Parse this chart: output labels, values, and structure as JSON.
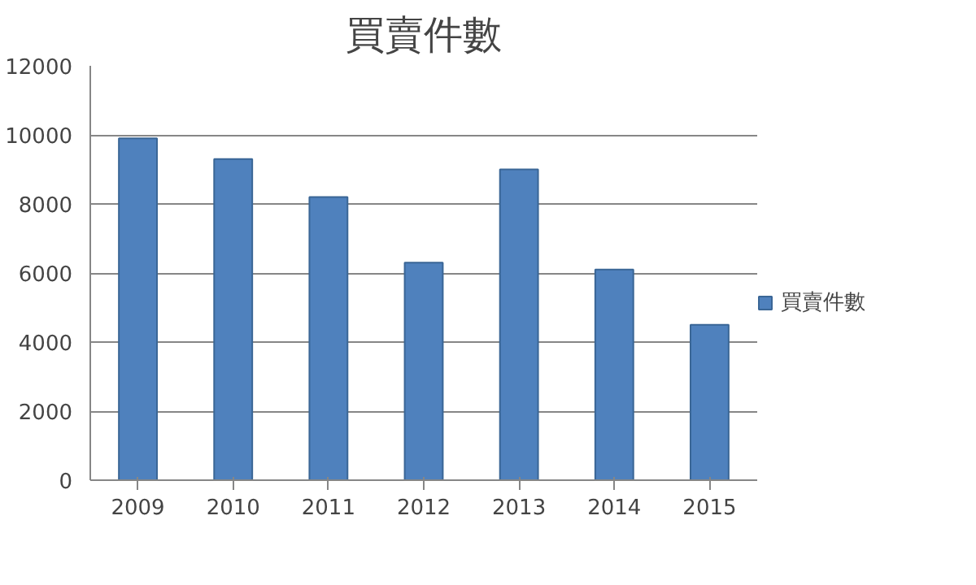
{
  "chart_data": {
    "type": "bar",
    "title": "買賣件數",
    "categories": [
      "2009",
      "2010",
      "2011",
      "2012",
      "2013",
      "2014",
      "2015"
    ],
    "series": [
      {
        "name": "買賣件數",
        "color": "#4f81bd",
        "values": [
          9900,
          9300,
          8200,
          6300,
          9000,
          6100,
          4500
        ]
      }
    ],
    "ylim": [
      0,
      12000
    ],
    "yticks": [
      0,
      2000,
      4000,
      6000,
      8000,
      10000,
      12000
    ],
    "grid": "y",
    "legend": "right"
  }
}
